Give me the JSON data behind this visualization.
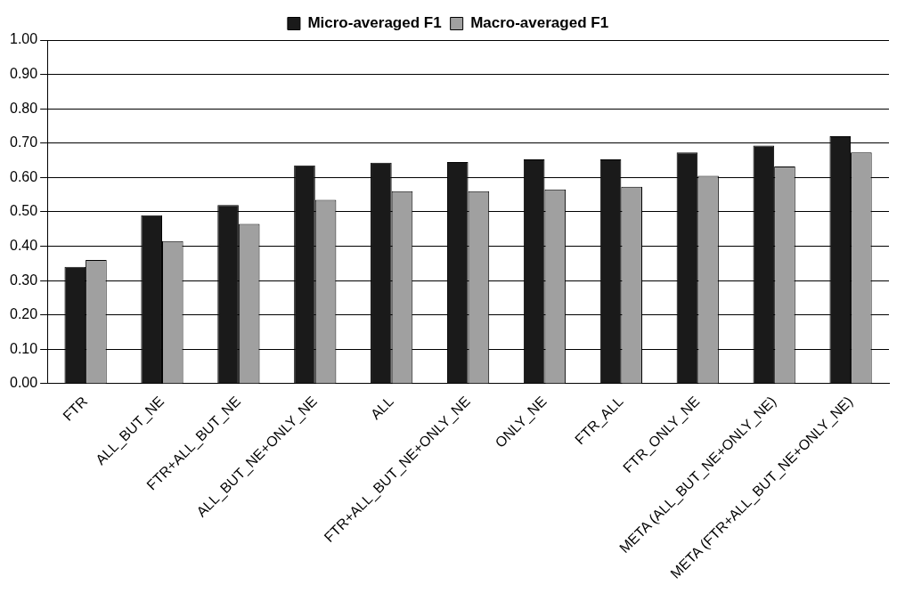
{
  "chart_data": {
    "type": "bar",
    "categories": [
      "FTR",
      "ALL_BUT_NE",
      "FTR+ALL_BUT_NE",
      "ALL_BUT_NE+ONLY_NE",
      "ALL",
      "FTR+ALL_BUT_NE+ONLY_NE",
      "ONLY_NE",
      "FTR_ALL",
      "FTR_ONLY_NE",
      "META (ALL_BUT_NE+ONLY_NE)",
      "META (FTR+ALL_BUT_NE+ONLY_NE)"
    ],
    "series": [
      {
        "name": "Micro-averaged F1",
        "color": "#1a1a1a",
        "values": [
          0.34,
          0.49,
          0.52,
          0.635,
          0.643,
          0.645,
          0.653,
          0.653,
          0.673,
          0.693,
          0.72
        ]
      },
      {
        "name": "Macro-averaged F1",
        "color": "#a0a0a0",
        "values": [
          0.36,
          0.415,
          0.465,
          0.535,
          0.56,
          0.56,
          0.565,
          0.573,
          0.605,
          0.632,
          0.673
        ]
      }
    ],
    "ylim": [
      0,
      1
    ],
    "yticks": [
      {
        "value": 0,
        "label": "0.00"
      },
      {
        "value": 0.1,
        "label": "0.10"
      },
      {
        "value": 0.2,
        "label": "0.20"
      },
      {
        "value": 0.3,
        "label": "0.30"
      },
      {
        "value": 0.4,
        "label": "0.40"
      },
      {
        "value": 0.5,
        "label": "0.50"
      },
      {
        "value": 0.6,
        "label": "0.60"
      },
      {
        "value": 0.7,
        "label": "0.70"
      },
      {
        "value": 0.8,
        "label": "0.80"
      },
      {
        "value": 0.9,
        "label": "0.90"
      },
      {
        "value": 1,
        "label": "1.00"
      }
    ],
    "grid": "y",
    "legend": "top"
  }
}
